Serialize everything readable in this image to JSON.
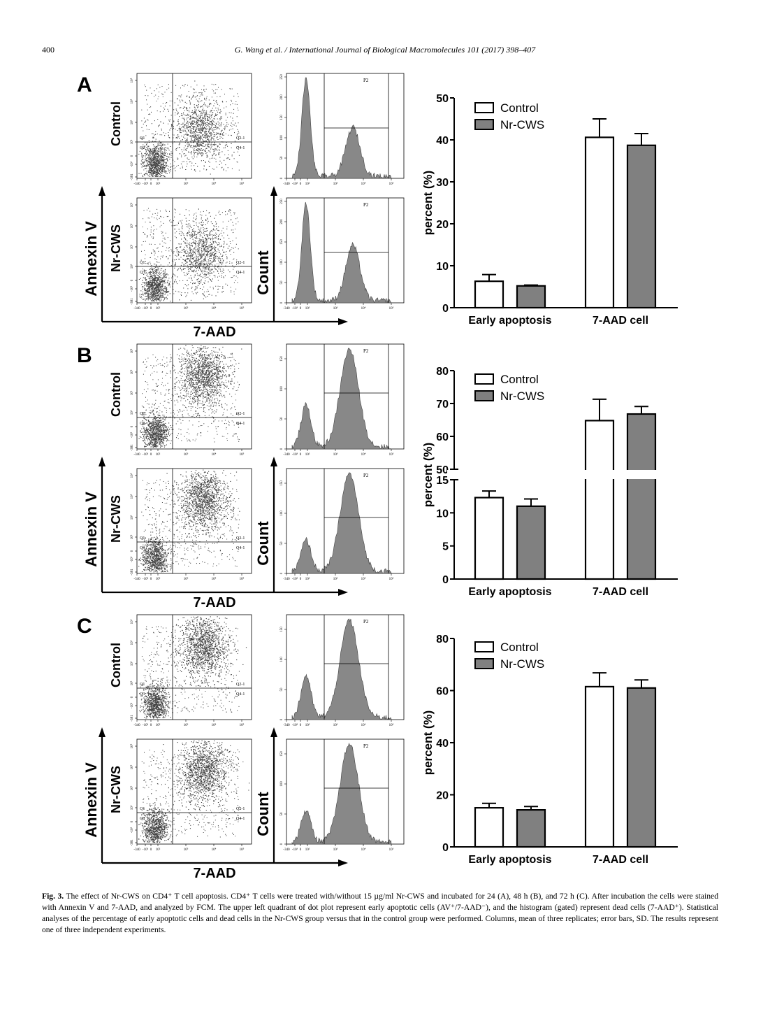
{
  "header": {
    "page_number": "400",
    "journal": "G. Wang et al. / International Journal of Biological Macromolecules 101 (2017) 398–407"
  },
  "figure": {
    "panels": [
      {
        "letter": "A",
        "row_labels": [
          "Control",
          "Nr-CWS"
        ],
        "dot_axis_y": "Annexin V",
        "hist_axis_y": "Count",
        "axis_x": "7-AAD"
      },
      {
        "letter": "B",
        "row_labels": [
          "Control",
          "Nr-CWS"
        ],
        "dot_axis_y": "Annexin V",
        "hist_axis_y": "Count",
        "axis_x": "7-AAD"
      },
      {
        "letter": "C",
        "row_labels": [
          "Control",
          "Nr-CWS"
        ],
        "dot_axis_y": "Annexin V",
        "hist_axis_y": "Count",
        "axis_x": "7-AAD"
      }
    ],
    "dot_plot": {
      "quadrant_labels": [
        "Q1",
        "Q2-1",
        "Q3",
        "Q4-1"
      ],
      "x_ticks": [
        "-340",
        "-10³",
        "0",
        "10²",
        "10³",
        "10⁴",
        "10⁵"
      ],
      "y_ticks": [
        "-381",
        "-10²",
        "0",
        "10²",
        "10³",
        "10⁴",
        "10⁵"
      ]
    },
    "histogram": {
      "gate_label": "P2",
      "x_ticks": [
        "-340",
        "-10³",
        "0",
        "10²",
        "10³",
        "10⁴",
        "10⁵"
      ],
      "y_ticks_by_panel": [
        [
          "0",
          "50",
          "100",
          "150",
          "200",
          "250"
        ],
        [
          "0",
          "50",
          "100",
          "150"
        ],
        [
          "0",
          "50",
          "100",
          "150"
        ]
      ]
    }
  },
  "chart_data": [
    {
      "type": "bar",
      "panel": "A",
      "categories": [
        "Early apoptosis",
        "7-AAD+ cell"
      ],
      "category_labels": [
        "Early apoptosis",
        "7-AAD cell"
      ],
      "series": [
        {
          "name": "Control",
          "values": [
            6.3,
            40.6
          ],
          "errors": [
            1.6,
            4.4
          ],
          "color": "#ffffff"
        },
        {
          "name": "Nr-CWS",
          "values": [
            5.2,
            38.7
          ],
          "errors": [
            0.2,
            2.8
          ],
          "color": "#808080"
        }
      ],
      "ylabel": "percent (%)",
      "ylim": [
        0,
        50
      ],
      "yticks": [
        0,
        10,
        20,
        30,
        40,
        50
      ],
      "legend": "top-left"
    },
    {
      "type": "bar",
      "panel": "B",
      "categories": [
        "Early apoptosis",
        "7-AAD+ cell"
      ],
      "category_labels": [
        "Early apoptosis",
        "7-AAD cell"
      ],
      "series": [
        {
          "name": "Control",
          "values": [
            12.3,
            64.8
          ],
          "errors": [
            1.0,
            6.5
          ],
          "color": "#ffffff"
        },
        {
          "name": "Nr-CWS",
          "values": [
            11.0,
            66.8
          ],
          "errors": [
            1.1,
            2.3
          ],
          "color": "#808080"
        }
      ],
      "ylabel": "percent (%)",
      "broken_axis": {
        "lower": [
          0,
          15
        ],
        "upper": [
          50,
          80
        ]
      },
      "yticks_lower": [
        0,
        5,
        10,
        15
      ],
      "yticks_upper": [
        50,
        60,
        70,
        80
      ],
      "legend": "top-left"
    },
    {
      "type": "bar",
      "panel": "C",
      "categories": [
        "Early apoptosis",
        "7-AAD+ cell"
      ],
      "category_labels": [
        "Early apoptosis",
        "7-AAD cell"
      ],
      "series": [
        {
          "name": "Control",
          "values": [
            15.0,
            61.5
          ],
          "errors": [
            1.7,
            5.3
          ],
          "color": "#ffffff"
        },
        {
          "name": "Nr-CWS",
          "values": [
            14.2,
            61.0
          ],
          "errors": [
            1.3,
            3.1
          ],
          "color": "#808080"
        }
      ],
      "ylabel": "percent (%)",
      "ylim": [
        0,
        80
      ],
      "yticks": [
        0,
        20,
        40,
        60,
        80
      ],
      "legend": "top-left"
    }
  ],
  "caption": {
    "label": "Fig. 3.",
    "text": "The effect of Nr-CWS on CD4⁺ T cell apoptosis. CD4⁺ T cells were treated with/without 15 µg/ml Nr-CWS and incubated for 24 (A), 48 h (B), and 72 h (C). After incubation the cells were stained with Annexin V and 7-AAD, and analyzed by FCM. The upper left quadrant of dot plot represent early apoptotic cells (AV⁺/7-AAD⁻), and the histogram (gated) represent dead cells (7-AAD⁺). Statistical analyses of the percentage of early apoptotic cells and dead cells in the Nr-CWS group versus that in the control group were performed. Columns, mean of three replicates; error bars, SD. The results represent one of three independent experiments."
  }
}
